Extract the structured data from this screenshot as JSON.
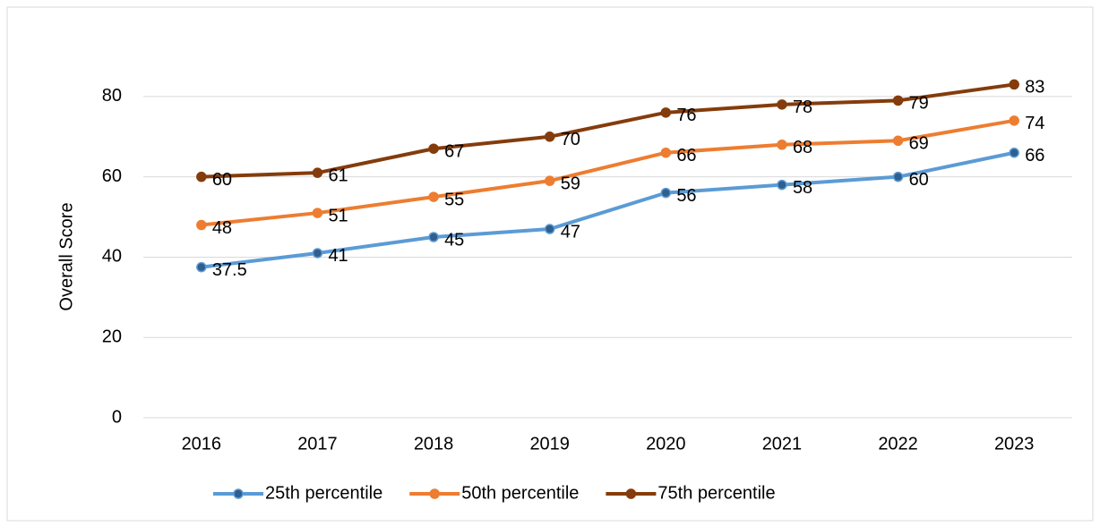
{
  "chart_data": {
    "type": "line",
    "y_label": "Overall Score",
    "categories": [
      "2016",
      "2017",
      "2018",
      "2019",
      "2020",
      "2021",
      "2022",
      "2023"
    ],
    "series": [
      {
        "name": "25th percentile",
        "color": "#5b9bd5",
        "marker_color": "#2f5f8f",
        "values": [
          37.5,
          41,
          45,
          47,
          56,
          58,
          60,
          66
        ]
      },
      {
        "name": "50th percentile",
        "color": "#ed7d31",
        "marker_color": "#ed7d31",
        "values": [
          48,
          51,
          55,
          59,
          66,
          68,
          69,
          74
        ]
      },
      {
        "name": "75th percentile",
        "color": "#843c0c",
        "marker_color": "#843c0c",
        "values": [
          60,
          61,
          67,
          70,
          76,
          78,
          79,
          83
        ]
      }
    ],
    "ylim": [
      0,
      90
    ],
    "yticks": [
      0,
      20,
      40,
      60,
      80
    ],
    "grid": true,
    "legend": "bottom"
  }
}
